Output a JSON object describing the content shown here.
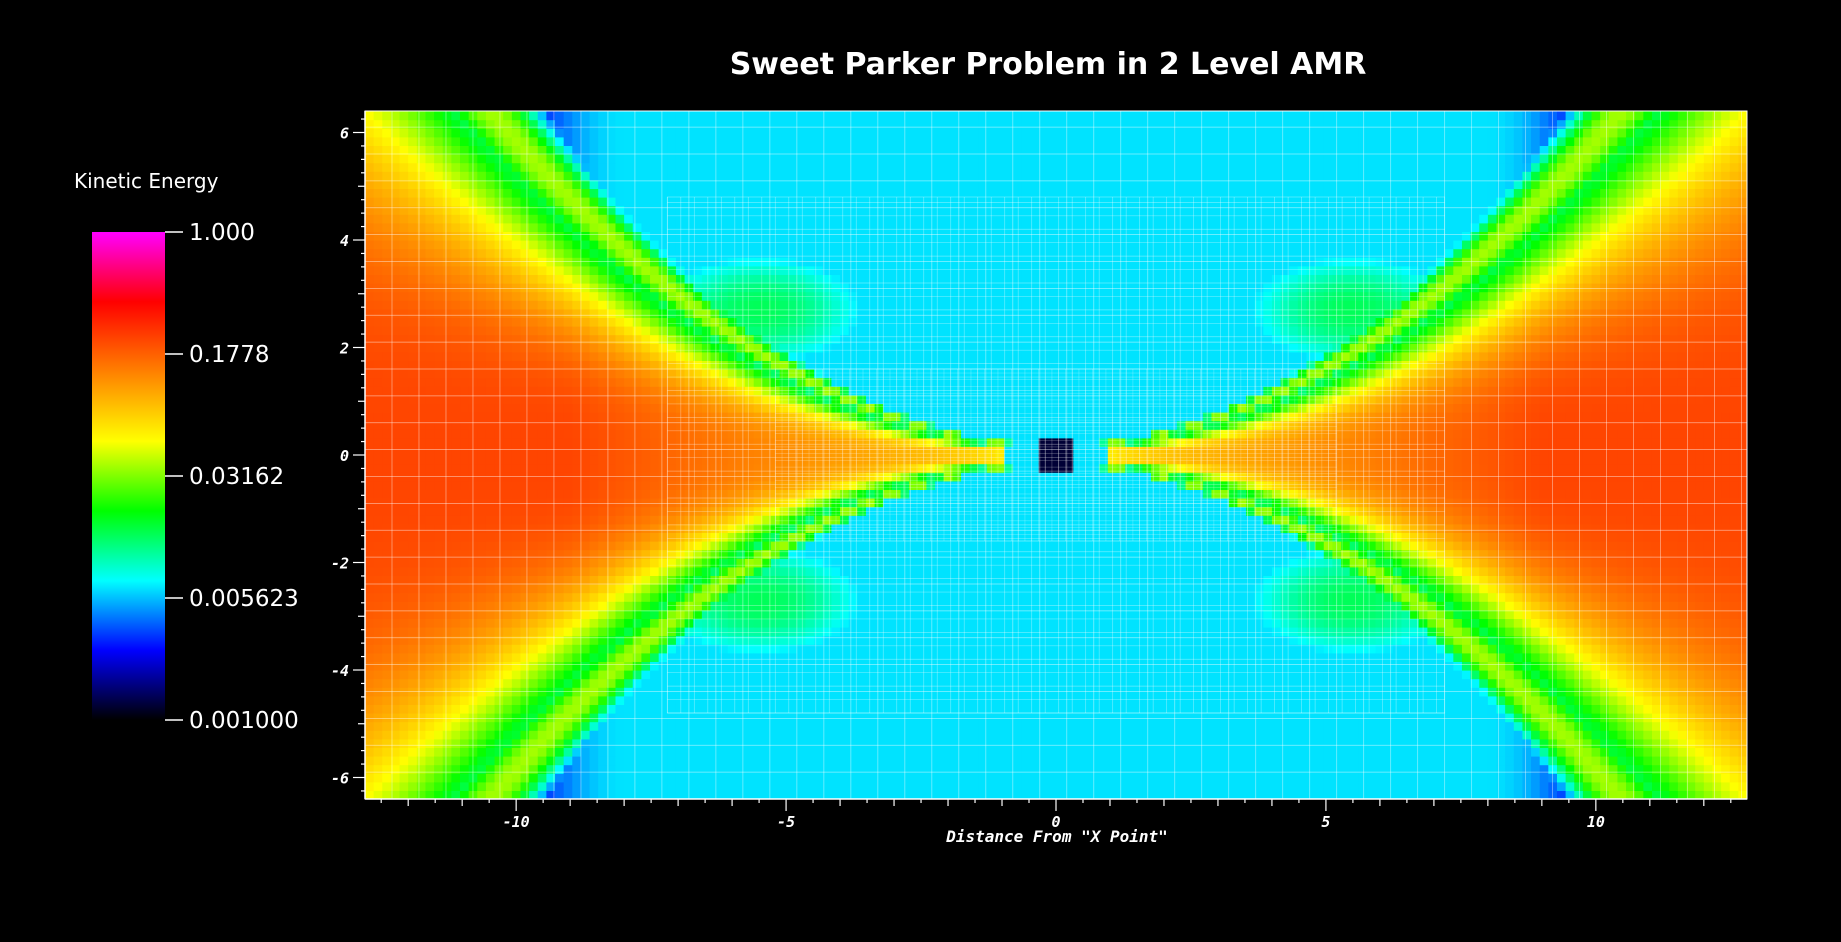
{
  "chart_data": {
    "type": "heatmap",
    "title": "Sweet Parker Problem in 2 Level AMR",
    "xlabel": "Distance From \"X Point\"",
    "ylabel": "",
    "xlim": [
      -12.8,
      12.8
    ],
    "ylim": [
      -6.4,
      6.4
    ],
    "x_ticks": [
      -10,
      -5,
      0,
      5,
      10
    ],
    "y_ticks": [
      -6,
      -4,
      -2,
      0,
      2,
      4,
      6
    ],
    "x_tick_labels": [
      "-10",
      "-5",
      "0",
      "5",
      "10"
    ],
    "y_tick_labels": [
      "-6",
      "-4",
      "-2",
      "0",
      "2",
      "4",
      "6"
    ],
    "grid": true,
    "colorbar": {
      "title": "Kinetic Energy",
      "scale": "log",
      "range": [
        0.001,
        1.0
      ],
      "ticks": [
        1.0,
        0.1778,
        0.03162,
        0.005623,
        0.001
      ],
      "tick_labels": [
        "1.000",
        "0.1778",
        "0.03162",
        "0.005623",
        "0.001000"
      ],
      "colormap": [
        "#000000",
        "#0000ff",
        "#00ffff",
        "#00ff00",
        "#ffff00",
        "#ff8000",
        "#ff0000",
        "#ff00ff"
      ]
    },
    "amr_levels": [
      {
        "level": 0,
        "x_range": [
          -12.8,
          12.8
        ],
        "y_range": [
          -6.4,
          6.4
        ],
        "cell_size": 0.5
      },
      {
        "level": 1,
        "x_range": [
          -7.2,
          7.2
        ],
        "y_range": [
          -4.8,
          4.8
        ],
        "cell_size": 0.25
      },
      {
        "level": 2,
        "x_range": [
          -5.2,
          5.2
        ],
        "y_range": [
          -1.6,
          1.6
        ],
        "cell_size": 0.125
      }
    ]
  }
}
